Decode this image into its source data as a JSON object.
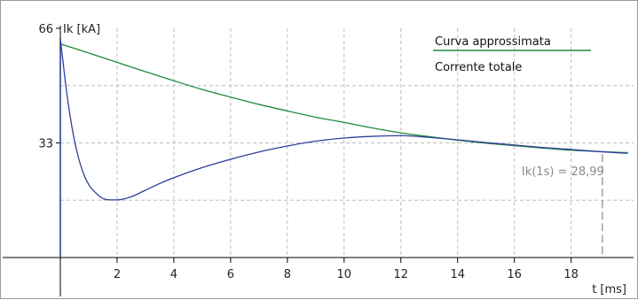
{
  "chart_data": {
    "type": "line",
    "xlabel": "t [ms]",
    "ylabel": "Ik [kA]",
    "xlim": [
      0,
      20.2
    ],
    "ylim": [
      0,
      66
    ],
    "x_ticks": [
      2,
      4,
      6,
      8,
      10,
      12,
      14,
      16,
      18
    ],
    "y_ticks": [
      33,
      66
    ],
    "grid": true,
    "legend": "top-right",
    "series": [
      {
        "name": "Curva approssimata",
        "color": "#1f8a3b",
        "x": [
          0,
          1,
          2,
          3,
          4,
          5,
          6,
          7,
          8,
          9,
          10,
          11,
          12,
          13,
          14,
          15,
          16,
          17,
          18,
          19,
          20
        ],
        "y": [
          61.5,
          58.9,
          56.2,
          53.5,
          50.9,
          48.4,
          46.2,
          44.1,
          42.2,
          40.4,
          38.9,
          37.3,
          35.9,
          34.8,
          33.8,
          32.9,
          32.2,
          31.5,
          30.9,
          30.5,
          30.2
        ]
      },
      {
        "name": "Corrente totale",
        "color": "#2e3f9a",
        "x": [
          0,
          0.1,
          0.2,
          0.4,
          0.6,
          0.8,
          1.0,
          1.2,
          1.5,
          1.8,
          2.0,
          2.5,
          3.0,
          3.5,
          4.0,
          5.0,
          6.0,
          7.0,
          8.0,
          9.0,
          10.0,
          11.0,
          12.0,
          13.0,
          14.0,
          15.0,
          16.0,
          17.0,
          18.0,
          19.0,
          20.0
        ],
        "y": [
          63,
          56,
          49,
          38,
          30,
          24.5,
          21,
          19,
          17,
          16.6,
          16.6,
          17.5,
          19.4,
          21.3,
          23,
          25.9,
          28.3,
          30.4,
          32.1,
          33.5,
          34.4,
          34.9,
          35.1,
          34.6,
          33.9,
          33.1,
          32.4,
          31.7,
          31.1,
          30.5,
          30.0
        ]
      }
    ],
    "annotations": [
      {
        "text": "Ik(1s) = 28,99",
        "x": 19.1,
        "y": 28.99
      }
    ]
  }
}
